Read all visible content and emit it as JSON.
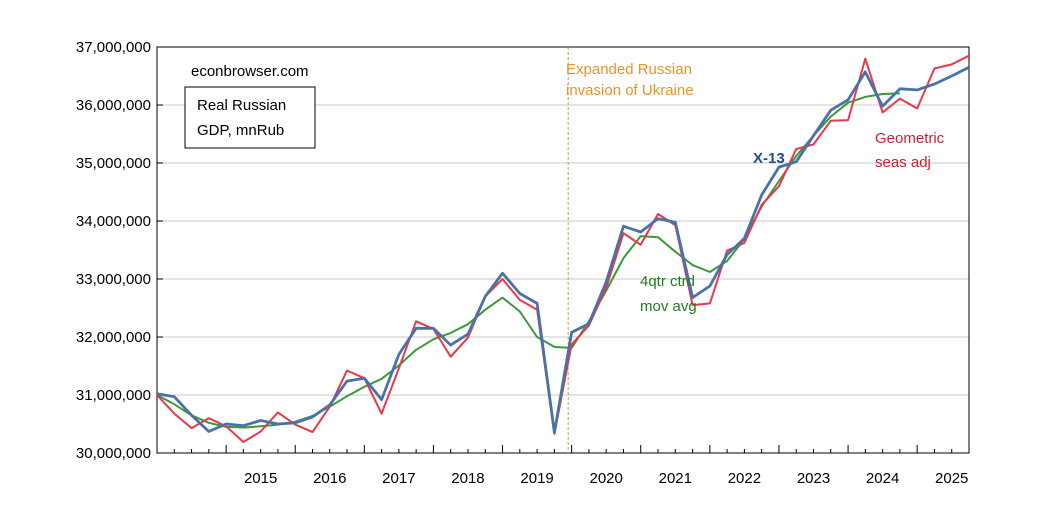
{
  "chart_data": {
    "type": "line",
    "source_text": "econbrowser.com",
    "title_lines": [
      "Real Russian",
      "GDP, mnRub"
    ],
    "event_lines": [
      "Expanded Russian",
      "invasion of Ukraine"
    ],
    "event_x": 2019.95,
    "ylim": [
      30000000,
      37000000
    ],
    "yticks": [
      30000000,
      31000000,
      32000000,
      33000000,
      34000000,
      35000000,
      36000000,
      37000000
    ],
    "ytick_labels": [
      "30,000,000",
      "31,000,000",
      "32,000,000",
      "33,000,000",
      "34,000,000",
      "35,000,000",
      "36,000,000",
      "37,000,000"
    ],
    "xlim": [
      2014.0,
      2025.75
    ],
    "xtick_labels": [
      "2015",
      "2016",
      "2017",
      "2018",
      "2019",
      "2020",
      "2021",
      "2022",
      "2023",
      "2024",
      "2025"
    ],
    "grid": "horizontal",
    "colors": {
      "x13": "#4a72a6",
      "geo": "#e8394a",
      "mavg": "#3a9a3a",
      "event": "#c8a050",
      "event_text": "#e8922a",
      "label_x13": "#1f4e8c",
      "label_geo": "#cc1f2f",
      "label_mavg": "#1f7f1f"
    },
    "x": [
      2014.0,
      2014.25,
      2014.5,
      2014.75,
      2015.0,
      2015.25,
      2015.5,
      2015.75,
      2016.0,
      2016.25,
      2016.5,
      2016.75,
      2017.0,
      2017.25,
      2017.5,
      2017.75,
      2018.0,
      2018.25,
      2018.5,
      2018.75,
      2019.0,
      2019.25,
      2019.5,
      2019.75,
      2020.0,
      2020.25,
      2020.5,
      2020.75,
      2021.0,
      2021.25,
      2021.5,
      2021.75,
      2022.0,
      2022.25,
      2022.5,
      2022.75,
      2023.0,
      2023.25,
      2023.5,
      2023.75,
      2024.0,
      2024.25,
      2024.5,
      2024.75,
      2025.0,
      2025.25,
      2025.5,
      2025.75
    ],
    "series": [
      {
        "key": "x13",
        "label": "X-13",
        "values": [
          31020000,
          30970000,
          30650000,
          30370000,
          30500000,
          30470000,
          30560000,
          30500000,
          30520000,
          30620000,
          30830000,
          31240000,
          31290000,
          30920000,
          31700000,
          32150000,
          32150000,
          31860000,
          32050000,
          32700000,
          33100000,
          32750000,
          32580000,
          30350000,
          32080000,
          32230000,
          32950000,
          33910000,
          33810000,
          34040000,
          33980000,
          32680000,
          32880000,
          33420000,
          33700000,
          34450000,
          34930000,
          35020000,
          35470000,
          35910000,
          36090000,
          36570000,
          35980000,
          36280000,
          36260000,
          36360000,
          36500000,
          36650000
        ]
      },
      {
        "key": "geo",
        "label": "Geometric seas adj",
        "values": [
          31000000,
          30680000,
          30430000,
          30600000,
          30460000,
          30190000,
          30370000,
          30700000,
          30490000,
          30360000,
          30800000,
          31420000,
          31290000,
          30680000,
          31460000,
          32270000,
          32140000,
          31660000,
          31990000,
          32700000,
          33000000,
          32640000,
          32470000,
          30330000,
          31870000,
          32200000,
          32850000,
          33790000,
          33590000,
          34120000,
          33930000,
          32550000,
          32580000,
          33490000,
          33620000,
          34280000,
          34600000,
          35240000,
          35320000,
          35730000,
          35740000,
          36800000,
          35870000,
          36110000,
          35940000,
          36630000,
          36700000,
          36850000
        ]
      },
      {
        "key": "mavg",
        "label": "4qtr ctrd mov avg",
        "values": [
          31000000,
          30840000,
          30650000,
          30520000,
          30450000,
          30440000,
          30460000,
          30490000,
          30540000,
          30640000,
          30800000,
          30980000,
          31140000,
          31280000,
          31510000,
          31780000,
          31960000,
          32070000,
          32220000,
          32470000,
          32680000,
          32440000,
          32000000,
          31830000,
          31810000,
          32270000,
          32800000,
          33360000,
          33740000,
          33720000,
          33470000,
          33240000,
          33120000,
          33310000,
          33690000,
          34250000,
          34690000,
          35120000,
          35470000,
          35800000,
          36040000,
          36140000,
          36190000,
          36200000,
          null,
          null,
          null,
          null
        ]
      }
    ]
  }
}
